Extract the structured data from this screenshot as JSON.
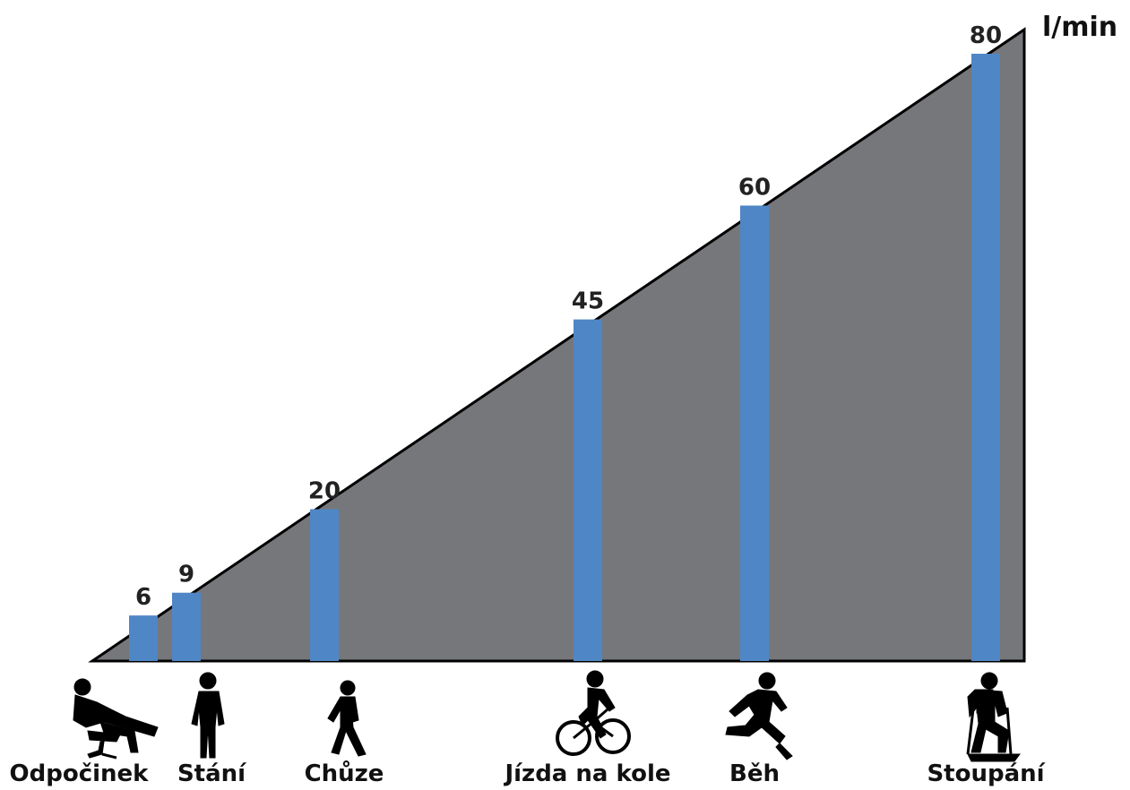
{
  "chart_data": {
    "type": "bar",
    "unit": "l/min",
    "categories": [
      "Odpočinek",
      "Stání",
      "Chůze",
      "Jízda na kole",
      "Běh",
      "Stoupání"
    ],
    "values": [
      6,
      9,
      20,
      45,
      60,
      80
    ],
    "value_labels": [
      "6",
      "9",
      "20",
      "45",
      "60",
      "80"
    ],
    "ylim": [
      0,
      80
    ],
    "grid": false,
    "legend": "none",
    "bar_color": "#4f86c6",
    "background_shape_color": "#76777b",
    "icons": [
      "resting-person-icon",
      "standing-person-icon",
      "walking-person-icon",
      "cyclist-icon",
      "runner-icon",
      "hiker-icon"
    ]
  }
}
